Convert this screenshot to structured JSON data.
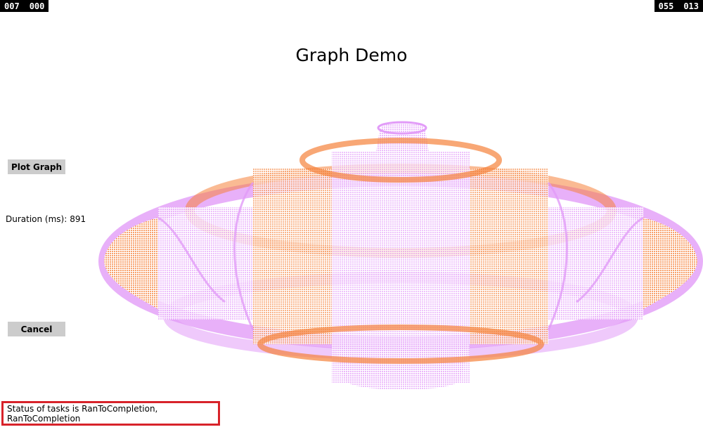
{
  "counters": {
    "left": [
      "007",
      "000"
    ],
    "right": [
      "055",
      "013"
    ]
  },
  "title": "Graph Demo",
  "buttons": {
    "plot_label": "Plot Graph",
    "cancel_label": "Cancel"
  },
  "duration": {
    "label": "Duration (ms):",
    "value": "891"
  },
  "status": {
    "text": "Status of tasks is RanToCompletion, RanToCompletion"
  },
  "colors": {
    "orange": "#f5813b",
    "violet": "#e29cf8",
    "status_border": "#d8232a",
    "button_bg": "#cccccc"
  }
}
